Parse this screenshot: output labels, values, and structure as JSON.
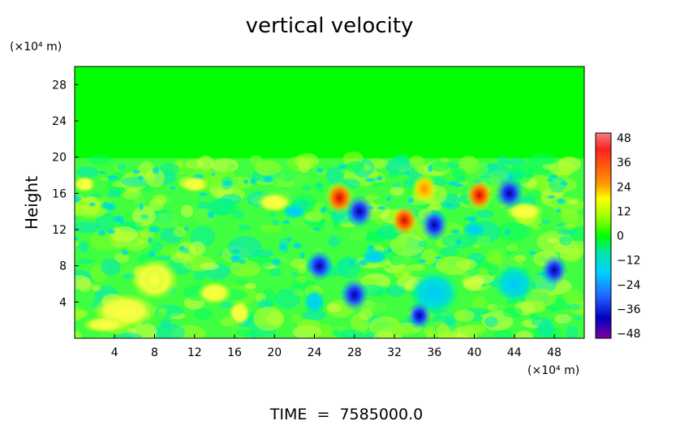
{
  "chart_data": {
    "type": "heatmap",
    "title": "vertical velocity",
    "ylabel": "Height",
    "y_unit": "(×10⁴ m)",
    "x_unit": "(×10⁴ m)",
    "footer": "TIME  =  7585000.0",
    "xlim": [
      0,
      51
    ],
    "ylim": [
      0,
      30
    ],
    "x_ticks": [
      "4",
      "8",
      "12",
      "16",
      "20",
      "24",
      "28",
      "32",
      "36",
      "40",
      "44",
      "48"
    ],
    "y_ticks": [
      "4",
      "8",
      "12",
      "16",
      "20",
      "24",
      "28"
    ],
    "colorbar": {
      "range": [
        -48,
        48
      ],
      "labels": [
        "48",
        "36",
        "24",
        "12",
        "0",
        "−12",
        "−24",
        "−36",
        "−48"
      ]
    },
    "field_summary": {
      "upper_layer_above_20": 0,
      "notable_features": [
        {
          "x": 16.5,
          "y": 2.8,
          "value": 22
        },
        {
          "x": 8,
          "y": 6.5,
          "value": 18
        },
        {
          "x": 26.5,
          "y": 15.5,
          "value": 40
        },
        {
          "x": 33,
          "y": 13,
          "value": 36
        },
        {
          "x": 35,
          "y": 16.5,
          "value": 30
        },
        {
          "x": 40.5,
          "y": 15.8,
          "value": 36
        },
        {
          "x": 28,
          "y": 4.8,
          "value": -40
        },
        {
          "x": 28.5,
          "y": 14,
          "value": -40
        },
        {
          "x": 36,
          "y": 12.5,
          "value": -38
        },
        {
          "x": 43.5,
          "y": 16,
          "value": -40
        },
        {
          "x": 34.5,
          "y": 2.5,
          "value": -30
        },
        {
          "x": 24.5,
          "y": 8,
          "value": -36
        },
        {
          "x": 48,
          "y": 7.5,
          "value": -36
        }
      ]
    }
  }
}
